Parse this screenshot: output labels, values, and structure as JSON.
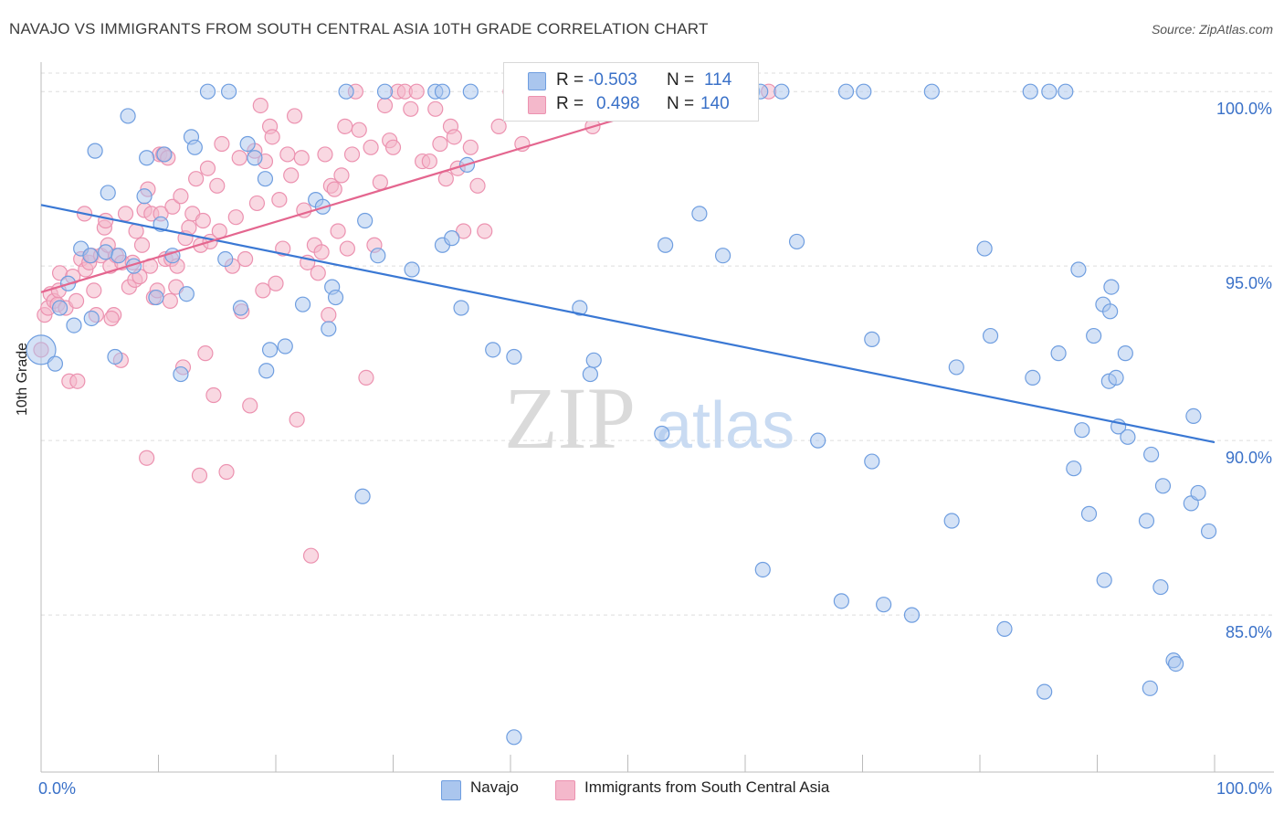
{
  "header": {
    "title": "NAVAJO VS IMMIGRANTS FROM SOUTH CENTRAL ASIA 10TH GRADE CORRELATION CHART",
    "source": "Source: ZipAtlas.com"
  },
  "watermark": {
    "zip": "ZIP",
    "atlas": "atlas"
  },
  "legend": {
    "rows": [
      {
        "r_label": "R =",
        "r_value": "-0.503",
        "n_label": "N =",
        "n_value": "114"
      },
      {
        "r_label": "R =",
        "r_value": "0.498",
        "n_label": "N =",
        "n_value": "140"
      }
    ]
  },
  "bottom_legend": {
    "series1": "Navajo",
    "series2": "Immigrants from South Central Asia"
  },
  "colors": {
    "navajo_fill": "#aac6ee",
    "navajo_stroke": "#6f9ee0",
    "navajo_line": "#3a78d4",
    "imm_fill": "#f4b8cb",
    "imm_stroke": "#ec92b0",
    "imm_line": "#e4668f",
    "tick_text": "#3a71c8",
    "grid": "#dddddd"
  },
  "chart_data": {
    "type": "scatter",
    "title": "NAVAJO VS IMMIGRANTS FROM SOUTH CENTRAL ASIA 10TH GRADE CORRELATION CHART",
    "xlabel": "",
    "ylabel": "10th Grade",
    "xlim": [
      0,
      100
    ],
    "ylim": [
      80.5,
      101
    ],
    "x_tick_labels": [
      "0.0%",
      "100.0%"
    ],
    "y_ticks": [
      85,
      90,
      95,
      100
    ],
    "y_tick_labels": [
      "85.0%",
      "90.0%",
      "95.0%",
      "100.0%"
    ],
    "series": [
      {
        "name": "Navajo",
        "R": -0.503,
        "N": 114,
        "trend": {
          "x": [
            0,
            100
          ],
          "y": [
            96.75,
            89.95
          ]
        },
        "points": [
          [
            0.0,
            92.6
          ],
          [
            1.2,
            92.2
          ],
          [
            1.6,
            93.8
          ],
          [
            2.3,
            94.5
          ],
          [
            2.8,
            93.3
          ],
          [
            3.4,
            95.5
          ],
          [
            4.2,
            95.3
          ],
          [
            4.3,
            93.5
          ],
          [
            4.6,
            98.3
          ],
          [
            5.5,
            95.4
          ],
          [
            5.7,
            97.1
          ],
          [
            6.3,
            92.4
          ],
          [
            6.6,
            95.3
          ],
          [
            7.4,
            99.3
          ],
          [
            7.9,
            95.0
          ],
          [
            8.8,
            97.0
          ],
          [
            9.0,
            98.1
          ],
          [
            9.8,
            94.1
          ],
          [
            10.2,
            96.2
          ],
          [
            10.5,
            98.2
          ],
          [
            11.2,
            95.3
          ],
          [
            11.9,
            91.9
          ],
          [
            12.4,
            94.2
          ],
          [
            12.8,
            98.7
          ],
          [
            13.1,
            98.4
          ],
          [
            14.2,
            100.0
          ],
          [
            15.7,
            95.2
          ],
          [
            16.0,
            100.0
          ],
          [
            17.0,
            93.8
          ],
          [
            17.6,
            98.5
          ],
          [
            18.2,
            98.1
          ],
          [
            19.1,
            97.5
          ],
          [
            19.2,
            92.0
          ],
          [
            19.5,
            92.6
          ],
          [
            20.8,
            92.7
          ],
          [
            22.3,
            93.9
          ],
          [
            23.4,
            96.9
          ],
          [
            24.0,
            96.7
          ],
          [
            24.5,
            93.2
          ],
          [
            24.8,
            94.4
          ],
          [
            25.1,
            94.1
          ],
          [
            26.0,
            100.0
          ],
          [
            27.4,
            88.4
          ],
          [
            27.6,
            96.3
          ],
          [
            28.7,
            95.3
          ],
          [
            29.3,
            100.0
          ],
          [
            31.6,
            94.9
          ],
          [
            33.6,
            100.0
          ],
          [
            34.2,
            95.6
          ],
          [
            35.0,
            95.8
          ],
          [
            35.8,
            93.8
          ],
          [
            36.3,
            97.9
          ],
          [
            36.6,
            100.0
          ],
          [
            38.5,
            92.6
          ],
          [
            40.3,
            92.4
          ],
          [
            40.3,
            81.5
          ],
          [
            45.9,
            93.8
          ],
          [
            46.8,
            91.9
          ],
          [
            47.1,
            92.3
          ],
          [
            53.2,
            95.6
          ],
          [
            52.9,
            90.2
          ],
          [
            56.1,
            96.5
          ],
          [
            58.1,
            95.3
          ],
          [
            60.6,
            100.0
          ],
          [
            61.3,
            100.0
          ],
          [
            61.5,
            86.3
          ],
          [
            63.1,
            100.0
          ],
          [
            64.4,
            95.7
          ],
          [
            66.2,
            90.0
          ],
          [
            68.2,
            85.4
          ],
          [
            68.6,
            100.0
          ],
          [
            70.1,
            100.0
          ],
          [
            70.8,
            89.4
          ],
          [
            70.8,
            92.9
          ],
          [
            71.8,
            85.3
          ],
          [
            74.2,
            85.0
          ],
          [
            75.9,
            100.0
          ],
          [
            77.6,
            87.7
          ],
          [
            78.0,
            92.1
          ],
          [
            80.4,
            95.5
          ],
          [
            80.9,
            93.0
          ],
          [
            82.1,
            84.6
          ],
          [
            84.5,
            91.8
          ],
          [
            85.5,
            82.8
          ],
          [
            86.7,
            92.5
          ],
          [
            87.3,
            100.0
          ],
          [
            88.0,
            89.2
          ],
          [
            88.4,
            94.9
          ],
          [
            88.7,
            90.3
          ],
          [
            89.3,
            87.9
          ],
          [
            89.7,
            93.0
          ],
          [
            90.5,
            93.9
          ],
          [
            90.6,
            86.0
          ],
          [
            91.0,
            91.7
          ],
          [
            91.1,
            93.7
          ],
          [
            91.2,
            94.4
          ],
          [
            91.6,
            91.8
          ],
          [
            91.8,
            90.4
          ],
          [
            92.4,
            92.5
          ],
          [
            92.6,
            90.1
          ],
          [
            94.2,
            87.7
          ],
          [
            94.5,
            82.9
          ],
          [
            94.6,
            89.6
          ],
          [
            95.4,
            85.8
          ],
          [
            95.6,
            88.7
          ],
          [
            96.5,
            83.7
          ],
          [
            96.7,
            83.6
          ],
          [
            98.0,
            88.2
          ],
          [
            98.2,
            90.7
          ],
          [
            98.6,
            88.5
          ],
          [
            99.5,
            87.4
          ],
          [
            85.9,
            100.0
          ],
          [
            84.3,
            100.0
          ],
          [
            34.2,
            100.0
          ]
        ]
      },
      {
        "name": "Immigrants from South Central Asia",
        "R": 0.498,
        "N": 140,
        "trend": {
          "x": [
            0,
            57
          ],
          "y": [
            94.25,
            100.0
          ]
        },
        "points": [
          [
            0.0,
            92.6
          ],
          [
            0.3,
            93.6
          ],
          [
            0.6,
            93.8
          ],
          [
            0.8,
            94.2
          ],
          [
            1.1,
            94.0
          ],
          [
            1.4,
            93.9
          ],
          [
            1.5,
            94.3
          ],
          [
            1.6,
            94.8
          ],
          [
            2.1,
            93.8
          ],
          [
            2.4,
            91.7
          ],
          [
            2.7,
            94.7
          ],
          [
            3.1,
            91.7
          ],
          [
            3.4,
            95.2
          ],
          [
            3.7,
            96.5
          ],
          [
            3.8,
            94.9
          ],
          [
            4.1,
            95.1
          ],
          [
            4.3,
            95.3
          ],
          [
            4.5,
            94.3
          ],
          [
            4.7,
            93.6
          ],
          [
            5.1,
            95.3
          ],
          [
            5.4,
            96.1
          ],
          [
            5.5,
            96.3
          ],
          [
            5.7,
            95.6
          ],
          [
            5.9,
            95.0
          ],
          [
            6.2,
            93.6
          ],
          [
            6.4,
            95.3
          ],
          [
            6.8,
            92.3
          ],
          [
            6.9,
            95.1
          ],
          [
            7.2,
            96.5
          ],
          [
            7.5,
            94.4
          ],
          [
            7.8,
            95.1
          ],
          [
            8.0,
            94.6
          ],
          [
            8.1,
            96.0
          ],
          [
            8.4,
            94.7
          ],
          [
            8.6,
            95.6
          ],
          [
            8.8,
            96.6
          ],
          [
            9.1,
            97.2
          ],
          [
            9.3,
            95.0
          ],
          [
            9.4,
            96.5
          ],
          [
            9.6,
            94.1
          ],
          [
            9.9,
            94.3
          ],
          [
            10.1,
            98.2
          ],
          [
            10.2,
            96.5
          ],
          [
            10.4,
            98.2
          ],
          [
            10.6,
            95.2
          ],
          [
            10.8,
            98.1
          ],
          [
            11.0,
            94.0
          ],
          [
            11.1,
            95.2
          ],
          [
            11.2,
            96.7
          ],
          [
            11.5,
            94.4
          ],
          [
            11.6,
            95.0
          ],
          [
            11.9,
            97.0
          ],
          [
            12.1,
            92.1
          ],
          [
            12.3,
            95.8
          ],
          [
            12.6,
            96.1
          ],
          [
            12.9,
            96.5
          ],
          [
            13.2,
            97.5
          ],
          [
            13.6,
            95.6
          ],
          [
            13.8,
            96.3
          ],
          [
            14.0,
            92.5
          ],
          [
            14.2,
            97.8
          ],
          [
            14.4,
            95.7
          ],
          [
            14.7,
            91.3
          ],
          [
            15.0,
            97.3
          ],
          [
            15.2,
            96.0
          ],
          [
            15.4,
            98.5
          ],
          [
            15.8,
            89.1
          ],
          [
            16.3,
            95.0
          ],
          [
            16.6,
            96.4
          ],
          [
            16.9,
            98.1
          ],
          [
            17.1,
            93.7
          ],
          [
            17.4,
            95.2
          ],
          [
            17.8,
            91.0
          ],
          [
            18.2,
            98.3
          ],
          [
            18.4,
            96.8
          ],
          [
            18.7,
            99.6
          ],
          [
            18.9,
            94.3
          ],
          [
            19.1,
            98.0
          ],
          [
            19.5,
            99.0
          ],
          [
            19.7,
            98.7
          ],
          [
            20.0,
            94.5
          ],
          [
            20.3,
            96.9
          ],
          [
            20.6,
            95.5
          ],
          [
            21.0,
            98.2
          ],
          [
            21.3,
            97.6
          ],
          [
            21.6,
            99.3
          ],
          [
            21.8,
            90.6
          ],
          [
            22.2,
            98.1
          ],
          [
            22.4,
            96.6
          ],
          [
            22.7,
            95.1
          ],
          [
            23.0,
            86.7
          ],
          [
            23.3,
            95.6
          ],
          [
            23.6,
            94.8
          ],
          [
            23.9,
            95.4
          ],
          [
            24.2,
            98.2
          ],
          [
            24.5,
            93.6
          ],
          [
            24.7,
            97.3
          ],
          [
            25.0,
            97.2
          ],
          [
            25.3,
            96.0
          ],
          [
            25.6,
            97.6
          ],
          [
            25.9,
            99.0
          ],
          [
            26.1,
            95.5
          ],
          [
            26.5,
            98.2
          ],
          [
            26.8,
            100.0
          ],
          [
            27.1,
            98.9
          ],
          [
            27.7,
            91.8
          ],
          [
            28.1,
            98.4
          ],
          [
            28.4,
            95.6
          ],
          [
            28.9,
            97.4
          ],
          [
            29.3,
            99.6
          ],
          [
            29.7,
            98.6
          ],
          [
            30.0,
            98.4
          ],
          [
            30.4,
            100.0
          ],
          [
            31.0,
            100.0
          ],
          [
            31.5,
            99.5
          ],
          [
            32.0,
            100.0
          ],
          [
            32.5,
            98.0
          ],
          [
            33.1,
            98.0
          ],
          [
            33.6,
            99.5
          ],
          [
            34.0,
            98.5
          ],
          [
            34.5,
            97.5
          ],
          [
            34.9,
            99.0
          ],
          [
            35.2,
            98.7
          ],
          [
            35.5,
            97.8
          ],
          [
            36.0,
            96.0
          ],
          [
            36.6,
            98.4
          ],
          [
            37.2,
            97.3
          ],
          [
            37.8,
            96.0
          ],
          [
            39.0,
            99.0
          ],
          [
            40.0,
            100.0
          ],
          [
            41.0,
            98.5
          ],
          [
            42.0,
            99.5
          ],
          [
            45.0,
            100.0
          ],
          [
            47.0,
            99.0
          ],
          [
            57.0,
            100.0
          ],
          [
            62.0,
            100.0
          ],
          [
            13.5,
            89.0
          ],
          [
            9.0,
            89.5
          ],
          [
            6.0,
            93.5
          ],
          [
            3.0,
            94.0
          ]
        ]
      }
    ]
  }
}
